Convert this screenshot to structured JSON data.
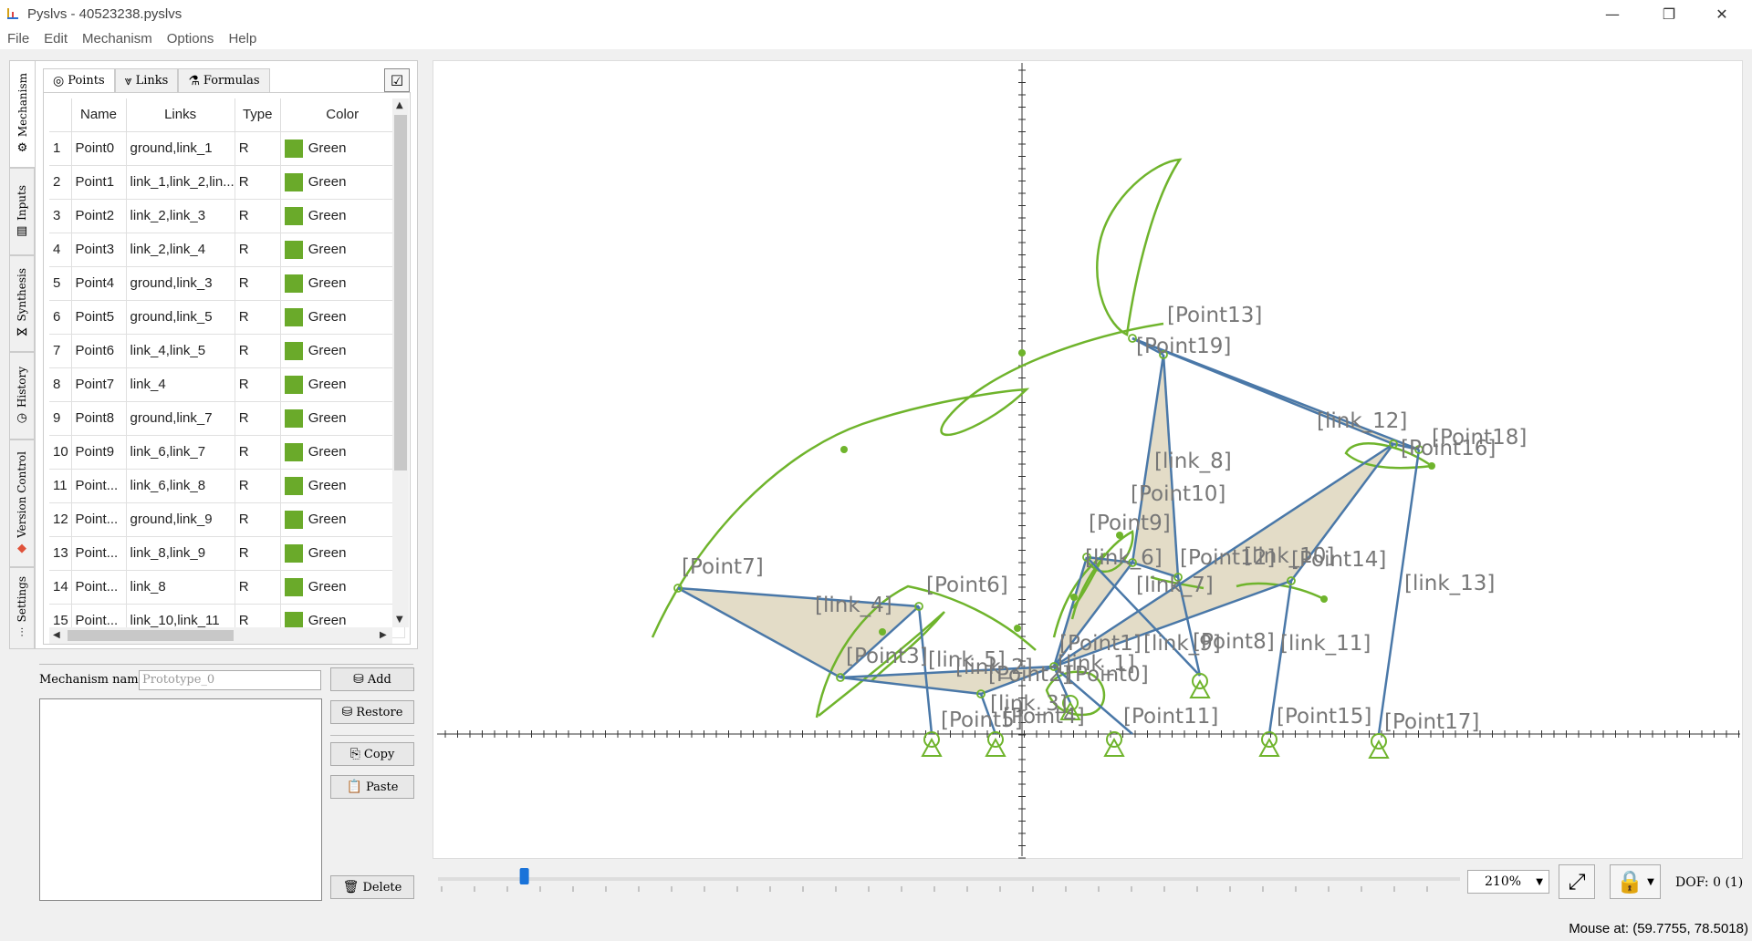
{
  "window": {
    "title": "Pyslvs - 40523238.pyslvs",
    "minimize": "—",
    "restore": "❐",
    "close": "✕"
  },
  "menu": [
    "File",
    "Edit",
    "Mechanism",
    "Options",
    "Help"
  ],
  "side_tabs": [
    {
      "label": "Mechanism",
      "icon": "gear-icon",
      "glyph": "⚙"
    },
    {
      "label": "Inputs",
      "icon": "inputs-icon",
      "glyph": "▤"
    },
    {
      "label": "Synthesis",
      "icon": "synthesis-icon",
      "glyph": "⋈"
    },
    {
      "label": "History",
      "icon": "history-icon",
      "glyph": "◷"
    },
    {
      "label": "Version Control",
      "icon": "git-icon",
      "glyph": "◆"
    },
    {
      "label": "Settings",
      "icon": "settings-icon",
      "glyph": "⫶"
    }
  ],
  "top_tabs": [
    {
      "label": "Points",
      "glyph": "◎"
    },
    {
      "label": "Links",
      "glyph": "⩔"
    },
    {
      "label": "Formulas",
      "glyph": "⚗"
    }
  ],
  "table": {
    "headers": [
      "Name",
      "Links",
      "Type",
      "Color"
    ],
    "rows": [
      {
        "num": "1",
        "name": "Point0",
        "links": "ground,link_1",
        "type": "R",
        "color": "Green"
      },
      {
        "num": "2",
        "name": "Point1",
        "links": "link_1,link_2,lin...",
        "type": "R",
        "color": "Green"
      },
      {
        "num": "3",
        "name": "Point2",
        "links": "link_2,link_3",
        "type": "R",
        "color": "Green"
      },
      {
        "num": "4",
        "name": "Point3",
        "links": "link_2,link_4",
        "type": "R",
        "color": "Green"
      },
      {
        "num": "5",
        "name": "Point4",
        "links": "ground,link_3",
        "type": "R",
        "color": "Green"
      },
      {
        "num": "6",
        "name": "Point5",
        "links": "ground,link_5",
        "type": "R",
        "color": "Green"
      },
      {
        "num": "7",
        "name": "Point6",
        "links": "link_4,link_5",
        "type": "R",
        "color": "Green"
      },
      {
        "num": "8",
        "name": "Point7",
        "links": "link_4",
        "type": "R",
        "color": "Green"
      },
      {
        "num": "9",
        "name": "Point8",
        "links": "ground,link_7",
        "type": "R",
        "color": "Green"
      },
      {
        "num": "10",
        "name": "Point9",
        "links": "link_6,link_7",
        "type": "R",
        "color": "Green"
      },
      {
        "num": "11",
        "name": "Point...",
        "links": "link_6,link_8",
        "type": "R",
        "color": "Green"
      },
      {
        "num": "12",
        "name": "Point...",
        "links": "ground,link_9",
        "type": "R",
        "color": "Green"
      },
      {
        "num": "13",
        "name": "Point...",
        "links": "link_8,link_9",
        "type": "R",
        "color": "Green"
      },
      {
        "num": "14",
        "name": "Point...",
        "links": "link_8",
        "type": "R",
        "color": "Green"
      },
      {
        "num": "15",
        "name": "Point...",
        "links": "link_10,link_11",
        "type": "R",
        "color": "Green"
      }
    ]
  },
  "mechanism_panel": {
    "name_label": "Mechanism name:",
    "name_placeholder": "Prototype_0",
    "buttons": {
      "add": "Add",
      "restore": "Restore",
      "copy": "Copy",
      "paste": "Paste",
      "delete": "Delete"
    }
  },
  "canvas": {
    "point_labels": [
      "[Point13]",
      "[Point19]",
      "[link_12]",
      "[Point18]",
      "[Point16]",
      "[link_8]",
      "[Point10]",
      "[Point9]",
      "[link_6]",
      "[Point12]",
      "[link_10]",
      "[Point14]",
      "[link_7]",
      "[Point7]",
      "[Point6]",
      "[link_4]",
      "[link_13]",
      "[Point1]",
      "[link_9]",
      "[Point8]",
      "[link_11]",
      "[Point3]",
      "[link_5]",
      "[link_2]",
      "[Point2]",
      "[Point0]",
      "[link_1]",
      "[link_3]",
      "[Point5]",
      "[Point4]",
      "[Point11]",
      "[Point15]",
      "[Point17]"
    ],
    "colors": {
      "link": "#4a78a8",
      "path": "#6fb42c",
      "fill": "#e3dcc7",
      "label": "#777777"
    }
  },
  "bottom": {
    "zoom": "210%",
    "dof": "DOF: 0 (1)",
    "slider_value": 0.08
  },
  "status": {
    "mouse": "Mouse at: (59.7755, 78.5018)"
  }
}
